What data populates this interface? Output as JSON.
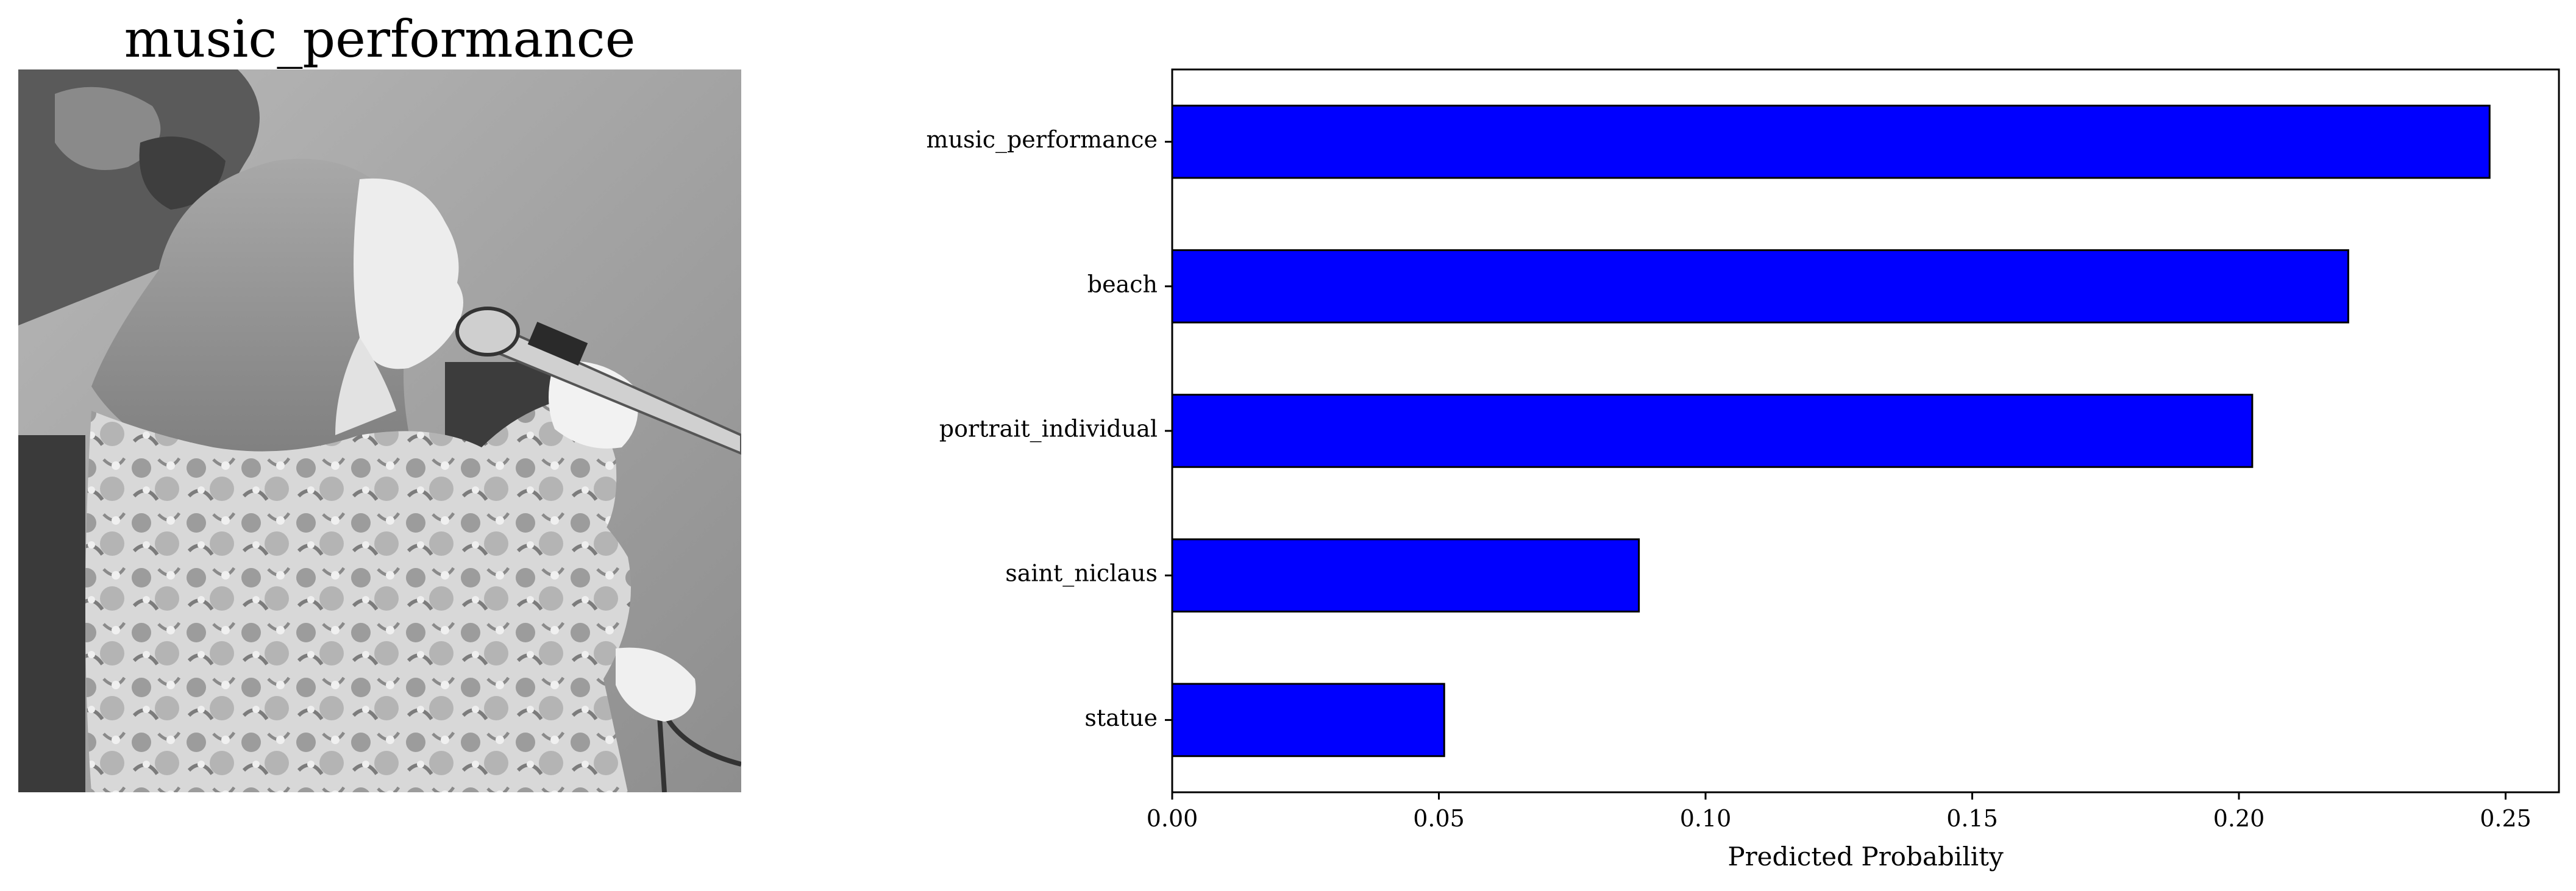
{
  "image_panel": {
    "title": "music_performance"
  },
  "chart_data": {
    "type": "bar",
    "orientation": "horizontal",
    "categories": [
      "music_performance",
      "beach",
      "portrait_individual",
      "saint_niclaus",
      "statue"
    ],
    "values": [
      0.247,
      0.2205,
      0.2025,
      0.0875,
      0.051
    ],
    "xlabel": "Predicted Probability",
    "ylabel": "",
    "xlim": [
      0,
      0.26
    ],
    "xticks": [
      0.0,
      0.05,
      0.1,
      0.15,
      0.2,
      0.25
    ],
    "xtick_labels": [
      "0.00",
      "0.05",
      "0.10",
      "0.15",
      "0.20",
      "0.25"
    ],
    "bar_color": "#0000ff",
    "bar_edge_color": "#000000",
    "grid": false,
    "legend": "none"
  }
}
